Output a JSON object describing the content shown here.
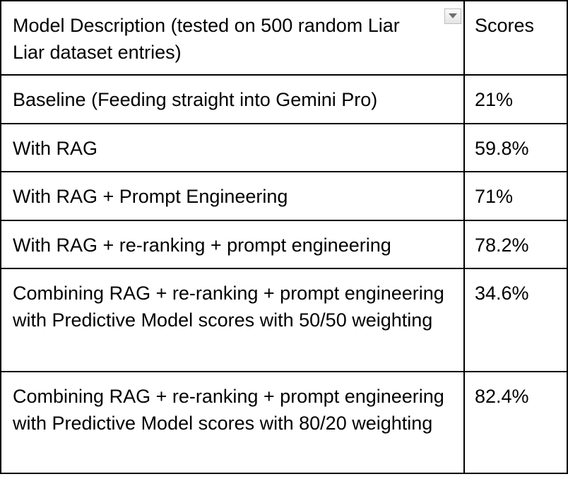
{
  "table": {
    "header": {
      "description": "Model Description (tested on 500 random Liar Liar dataset entries)",
      "scores": "Scores"
    },
    "filter_icon": "dropdown-filter-icon",
    "rows": [
      {
        "description": "Baseline (Feeding straight into Gemini Pro)",
        "score": "21%"
      },
      {
        "description": "With RAG",
        "score": "59.8%"
      },
      {
        "description": "With RAG + Prompt Engineering",
        "score": "71%"
      },
      {
        "description": "With RAG + re-ranking + prompt engineering",
        "score": "78.2%"
      },
      {
        "description": "Combining RAG + re-ranking + prompt engineering with Predictive Model scores with 50/50 weighting",
        "score": "34.6%"
      },
      {
        "description": "Combining RAG + re-ranking + prompt engineering with Predictive Model scores with 80/20 weighting",
        "score": "82.4%"
      }
    ]
  },
  "colors": {
    "border": "#000000",
    "text": "#000000",
    "background": "#ffffff"
  }
}
